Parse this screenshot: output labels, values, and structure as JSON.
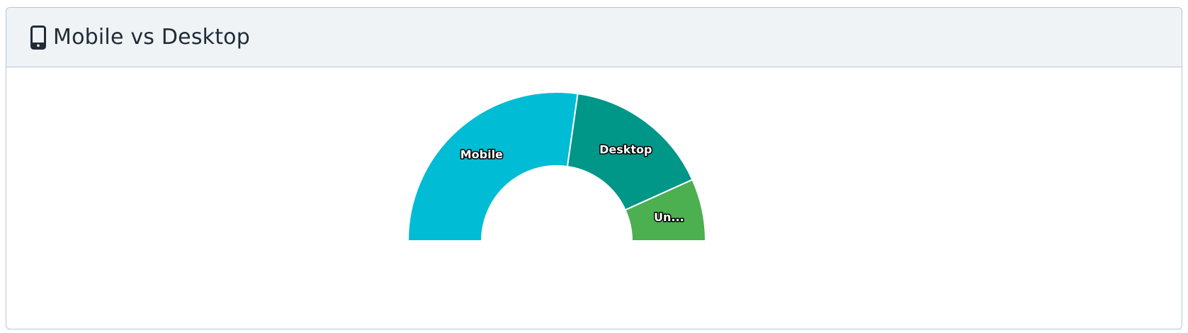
{
  "header": {
    "title": "Mobile vs Desktop",
    "icon": "mobile-phone-icon"
  },
  "chart_data": {
    "type": "pie",
    "variant": "semi-donut",
    "title": "Mobile vs Desktop",
    "series": [
      {
        "name": "",
        "slices": [
          {
            "label": "Mobile",
            "display_label": "Mobile",
            "value": 54.5,
            "color": "#00bcd4"
          },
          {
            "label": "Desktop",
            "display_label": "Desktop",
            "value": 32.0,
            "color": "#009688"
          },
          {
            "label": "Unknown",
            "display_label": "Un...",
            "value": 13.5,
            "color": "#4caf50"
          }
        ]
      }
    ],
    "legend": "none"
  }
}
